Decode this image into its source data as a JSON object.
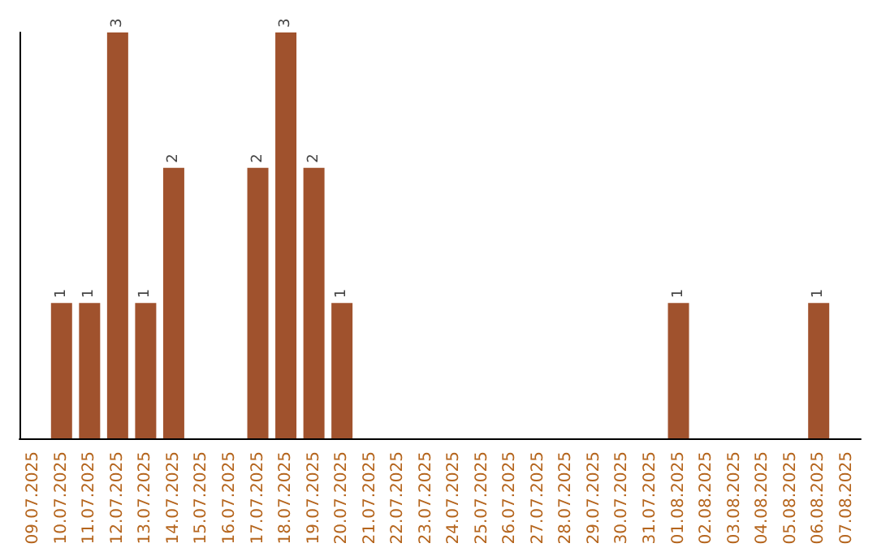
{
  "chart_data": {
    "type": "bar",
    "categories": [
      "09.07.2025",
      "10.07.2025",
      "11.07.2025",
      "12.07.2025",
      "13.07.2025",
      "14.07.2025",
      "15.07.2025",
      "16.07.2025",
      "17.07.2025",
      "18.07.2025",
      "19.07.2025",
      "20.07.2025",
      "21.07.2025",
      "22.07.2025",
      "23.07.2025",
      "24.07.2025",
      "25.07.2025",
      "26.07.2025",
      "27.07.2025",
      "28.07.2025",
      "29.07.2025",
      "30.07.2025",
      "31.07.2025",
      "01.08.2025",
      "02.08.2025",
      "03.08.2025",
      "04.08.2025",
      "05.08.2025",
      "06.08.2025",
      "07.08.2025"
    ],
    "values": [
      null,
      1,
      1,
      3,
      1,
      2,
      null,
      null,
      2,
      3,
      2,
      1,
      null,
      null,
      null,
      null,
      null,
      null,
      null,
      null,
      null,
      null,
      null,
      1,
      null,
      null,
      null,
      null,
      1,
      null
    ],
    "color": "#a0522d",
    "data_labels": true,
    "grid": false
  }
}
